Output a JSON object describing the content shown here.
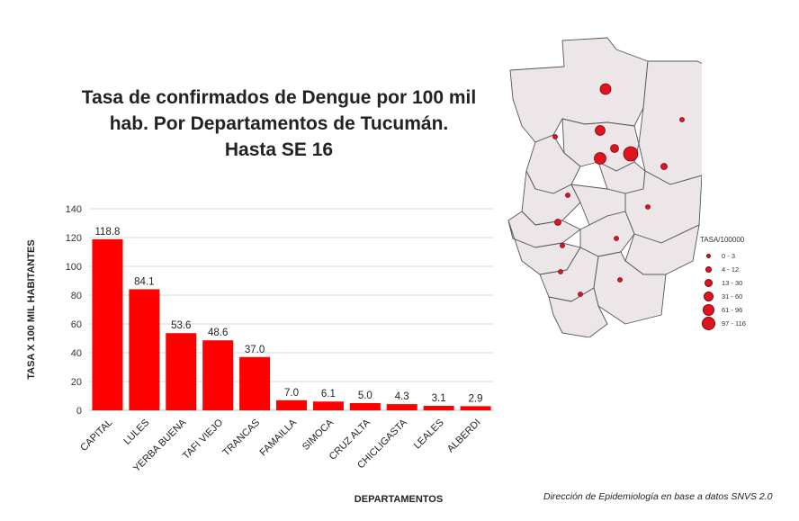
{
  "title": {
    "line1": "Tasa de confirmados de Dengue por 100 mil",
    "line2": "hab. Por Departamentos de Tucumán.",
    "line3": "Hasta SE 16"
  },
  "source": "Dirección de Epidemiología en base a datos SNVS 2.0",
  "map": {
    "legend_title": "TASA/100000",
    "legend_items": [
      "0 - 3",
      "4 - 12",
      "13 - 30",
      "31 - 60",
      "61 - 96",
      "97 - 116"
    ],
    "marker_color": "#e0141e",
    "region_fill": "#ece6e8",
    "region_stroke": "#555555"
  },
  "chart_data": {
    "type": "bar",
    "categories": [
      "CAPITAL",
      "LULES",
      "YERBA BUENA",
      "TAFI VIEJO",
      "TRANCAS",
      "FAMAILLA",
      "SIMOCA",
      "CRUZ ALTA",
      "CHICLIGASTA",
      "LEALES",
      "ALBERDI"
    ],
    "values": [
      118.8,
      84.1,
      53.6,
      48.6,
      37.0,
      7.0,
      6.1,
      5.0,
      4.3,
      3.1,
      2.9
    ],
    "value_labels": [
      "118.8",
      "84.1",
      "53.6",
      "48.6",
      "37.0",
      "7.0",
      "6.1",
      "5.0",
      "4.3",
      "3.1",
      "2.9"
    ],
    "xlabel": "DEPARTAMENTOS",
    "ylabel": "TASA X 100 MIL HABITANTES",
    "ylim": [
      0,
      140
    ],
    "yticks": [
      0,
      20,
      40,
      60,
      80,
      100,
      120,
      140
    ],
    "grid": true,
    "bar_color": "#ff0000"
  }
}
